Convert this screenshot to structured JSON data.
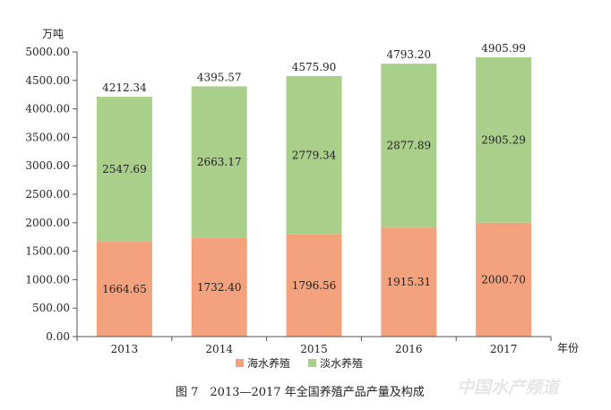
{
  "chart_data": {
    "type": "bar",
    "stacked": true,
    "categories": [
      "2013",
      "2014",
      "2015",
      "2016",
      "2017"
    ],
    "series": [
      {
        "name": "海水养殖",
        "color": "#f4a27d",
        "values": [
          1664.65,
          1732.4,
          1796.56,
          1915.31,
          2000.7
        ]
      },
      {
        "name": "淡水养殖",
        "color": "#a9cf8a",
        "values": [
          2547.69,
          2663.17,
          2779.34,
          2877.89,
          2905.29
        ]
      }
    ],
    "totals": [
      "4212.34",
      "4395.57",
      "4575.90",
      "4793.20",
      "4905.99"
    ],
    "value_labels": [
      [
        "1664.65",
        "1732.40",
        "1796.56",
        "1915.31",
        "2000.70"
      ],
      [
        "2547.69",
        "2663.17",
        "2779.34",
        "2877.89",
        "2905.29"
      ]
    ],
    "ylim": [
      0,
      5000
    ],
    "y_ticks": [
      "0.00",
      "500.00",
      "1000.00",
      "1500.00",
      "2000.00",
      "2500.00",
      "3000.00",
      "3500.00",
      "4000.00",
      "4500.00",
      "5000.00"
    ],
    "ylabel": "万吨",
    "xlabel": "年份",
    "legend_position": "bottom",
    "grid": false,
    "title": ""
  },
  "caption": "图 7　2013—2017 年全国养殖产品产量及构成",
  "watermark": "中国水产频道"
}
